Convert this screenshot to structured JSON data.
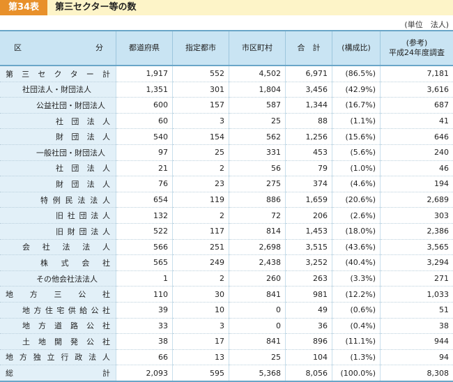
{
  "title": {
    "tag": "第34表",
    "text": "第三セクター等の数"
  },
  "unit": "(単位　法人)",
  "headers": {
    "category_left": "区",
    "category_right": "分",
    "prefecture": "都道府県",
    "designated_city": "指定都市",
    "municipality": "市区町村",
    "total": "合　計",
    "ratio": "(構成比)",
    "reference_line1": "(参考)",
    "reference_line2": "平成24年度調査"
  },
  "rows": [
    {
      "label": "第三セクター計",
      "level": 0,
      "spread": true,
      "v": [
        "1,917",
        "552",
        "4,502",
        "6,971",
        "(86.5%)",
        "7,181"
      ]
    },
    {
      "label": "社団法人・財団法人",
      "level": 1,
      "spread": false,
      "v": [
        "1,351",
        "301",
        "1,804",
        "3,456",
        "(42.9%)",
        "3,616"
      ]
    },
    {
      "label": "公益社団・財団法人",
      "level": 2,
      "spread": false,
      "v": [
        "600",
        "157",
        "587",
        "1,344",
        "(16.7%)",
        "687"
      ]
    },
    {
      "label": "社団法人",
      "level": 3,
      "spread": true,
      "v": [
        "60",
        "3",
        "25",
        "88",
        "(1.1%)",
        "41"
      ]
    },
    {
      "label": "財団法人",
      "level": 3,
      "spread": true,
      "v": [
        "540",
        "154",
        "562",
        "1,256",
        "(15.6%)",
        "646"
      ]
    },
    {
      "label": "一般社団・財団法人",
      "level": 2,
      "spread": false,
      "v": [
        "97",
        "25",
        "331",
        "453",
        "(5.6%)",
        "240"
      ]
    },
    {
      "label": "社団法人",
      "level": 3,
      "spread": true,
      "v": [
        "21",
        "2",
        "56",
        "79",
        "(1.0%)",
        "46"
      ]
    },
    {
      "label": "財団法人",
      "level": 3,
      "spread": true,
      "v": [
        "76",
        "23",
        "275",
        "374",
        "(4.6%)",
        "194"
      ]
    },
    {
      "label": "特例民法法人",
      "level": 2,
      "spread": true,
      "v": [
        "654",
        "119",
        "886",
        "1,659",
        "(20.6%)",
        "2,689"
      ]
    },
    {
      "label": "旧社団法人",
      "level": 3,
      "spread": true,
      "v": [
        "132",
        "2",
        "72",
        "206",
        "(2.6%)",
        "303"
      ]
    },
    {
      "label": "旧財団法人",
      "level": 3,
      "spread": true,
      "v": [
        "522",
        "117",
        "814",
        "1,453",
        "(18.0%)",
        "2,386"
      ]
    },
    {
      "label": "会社法法人",
      "level": 1,
      "spread": true,
      "v": [
        "566",
        "251",
        "2,698",
        "3,515",
        "(43.6%)",
        "3,565"
      ]
    },
    {
      "label": "株式会社",
      "level": 2,
      "spread": true,
      "v": [
        "565",
        "249",
        "2,438",
        "3,252",
        "(40.4%)",
        "3,294"
      ]
    },
    {
      "label": "その他会社法法人",
      "level": 2,
      "spread": false,
      "v": [
        "1",
        "2",
        "260",
        "263",
        "(3.3%)",
        "271"
      ]
    },
    {
      "label": "地方三公社",
      "level": 0,
      "spread": true,
      "v": [
        "110",
        "30",
        "841",
        "981",
        "(12.2%)",
        "1,033"
      ]
    },
    {
      "label": "地方住宅供給公社",
      "level": 1,
      "spread": true,
      "v": [
        "39",
        "10",
        "0",
        "49",
        "(0.6%)",
        "51"
      ]
    },
    {
      "label": "地方道路公社",
      "level": 1,
      "spread": true,
      "v": [
        "33",
        "3",
        "0",
        "36",
        "(0.4%)",
        "38"
      ]
    },
    {
      "label": "土地開発公社",
      "level": 1,
      "spread": true,
      "v": [
        "38",
        "17",
        "841",
        "896",
        "(11.1%)",
        "944"
      ]
    },
    {
      "label": "地方独立行政法人",
      "level": 0,
      "spread": true,
      "v": [
        "66",
        "13",
        "25",
        "104",
        "(1.3%)",
        "94"
      ]
    },
    {
      "label": "総計",
      "level": 0,
      "spread": true,
      "v": [
        "2,093",
        "595",
        "5,368",
        "8,056",
        "(100.0%)",
        "8,308"
      ]
    }
  ],
  "colors": {
    "accent": "#e8902a",
    "title_bg": "#fdf4c8",
    "header_bg": "#c9e4f3",
    "category_bg": "#e2f0f8",
    "rule": "#6aa6c8"
  }
}
